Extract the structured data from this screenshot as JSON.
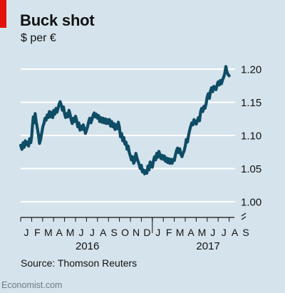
{
  "header": {
    "title": "Buck shot",
    "subtitle": "$ per €"
  },
  "footer": {
    "source": "Source: Thomson Reuters",
    "credit": "Economist.com"
  },
  "colors": {
    "background": "#d5e3ec",
    "line": "#0f4c65",
    "grid": "#ffffff",
    "accent_red": "#e3120b"
  },
  "chart_data": {
    "type": "line",
    "title": "Buck shot",
    "ylabel": "$ per €",
    "ylim": [
      1.0,
      1.21
    ],
    "y_ticks": [
      {
        "value": 1.2,
        "label": "1.20"
      },
      {
        "value": 1.15,
        "label": "1.15"
      },
      {
        "value": 1.1,
        "label": "1.10"
      },
      {
        "value": 1.05,
        "label": "1.05"
      },
      {
        "value": 1.0,
        "label": "1.00"
      }
    ],
    "axis_break": true,
    "grid": true,
    "x_month_labels": [
      "J",
      "F",
      "M",
      "A",
      "M",
      "J",
      "J",
      "A",
      "S",
      "O",
      "N",
      "D",
      "J",
      "F",
      "M",
      "A",
      "M",
      "J",
      "J",
      "A",
      "S"
    ],
    "x_year_labels": [
      {
        "label": "2016",
        "month_center": 5.5
      },
      {
        "label": "2017",
        "month_center": 16.5
      }
    ],
    "series": [
      {
        "values": [
          [
            0.0,
            1.085
          ],
          [
            0.12,
            1.079
          ],
          [
            0.22,
            1.089
          ],
          [
            0.32,
            1.082
          ],
          [
            0.42,
            1.092
          ],
          [
            0.52,
            1.086
          ],
          [
            0.62,
            1.09
          ],
          [
            0.72,
            1.084
          ],
          [
            0.82,
            1.095
          ],
          [
            0.92,
            1.089
          ],
          [
            1.0,
            1.098
          ],
          [
            1.08,
            1.115
          ],
          [
            1.15,
            1.128
          ],
          [
            1.22,
            1.119
          ],
          [
            1.32,
            1.133
          ],
          [
            1.42,
            1.12
          ],
          [
            1.52,
            1.111
          ],
          [
            1.62,
            1.101
          ],
          [
            1.72,
            1.088
          ],
          [
            1.82,
            1.094
          ],
          [
            1.92,
            1.104
          ],
          [
            2.02,
            1.113
          ],
          [
            2.12,
            1.118
          ],
          [
            2.22,
            1.126
          ],
          [
            2.32,
            1.123
          ],
          [
            2.42,
            1.131
          ],
          [
            2.52,
            1.127
          ],
          [
            2.62,
            1.136
          ],
          [
            2.72,
            1.128
          ],
          [
            2.82,
            1.135
          ],
          [
            2.92,
            1.127
          ],
          [
            3.02,
            1.138
          ],
          [
            3.12,
            1.132
          ],
          [
            3.22,
            1.141
          ],
          [
            3.32,
            1.135
          ],
          [
            3.42,
            1.142
          ],
          [
            3.52,
            1.148
          ],
          [
            3.6,
            1.151
          ],
          [
            3.7,
            1.146
          ],
          [
            3.8,
            1.138
          ],
          [
            3.9,
            1.143
          ],
          [
            4.0,
            1.133
          ],
          [
            4.1,
            1.127
          ],
          [
            4.2,
            1.133
          ],
          [
            4.3,
            1.128
          ],
          [
            4.4,
            1.138
          ],
          [
            4.5,
            1.132
          ],
          [
            4.6,
            1.124
          ],
          [
            4.7,
            1.118
          ],
          [
            4.8,
            1.126
          ],
          [
            4.9,
            1.121
          ],
          [
            5.0,
            1.129
          ],
          [
            5.1,
            1.123
          ],
          [
            5.2,
            1.113
          ],
          [
            5.3,
            1.119
          ],
          [
            5.4,
            1.108
          ],
          [
            5.5,
            1.114
          ],
          [
            5.6,
            1.109
          ],
          [
            5.7,
            1.116
          ],
          [
            5.8,
            1.111
          ],
          [
            5.9,
            1.103
          ],
          [
            6.0,
            1.108
          ],
          [
            6.1,
            1.113
          ],
          [
            6.2,
            1.121
          ],
          [
            6.3,
            1.126
          ],
          [
            6.4,
            1.119
          ],
          [
            6.5,
            1.124
          ],
          [
            6.6,
            1.13
          ],
          [
            6.7,
            1.134
          ],
          [
            6.8,
            1.128
          ],
          [
            6.9,
            1.132
          ],
          [
            7.0,
            1.126
          ],
          [
            7.1,
            1.13
          ],
          [
            7.2,
            1.121
          ],
          [
            7.3,
            1.127
          ],
          [
            7.4,
            1.12
          ],
          [
            7.5,
            1.126
          ],
          [
            7.6,
            1.119
          ],
          [
            7.7,
            1.125
          ],
          [
            7.8,
            1.118
          ],
          [
            7.9,
            1.124
          ],
          [
            8.0,
            1.118
          ],
          [
            8.1,
            1.124
          ],
          [
            8.2,
            1.114
          ],
          [
            8.3,
            1.121
          ],
          [
            8.4,
            1.113
          ],
          [
            8.5,
            1.118
          ],
          [
            8.6,
            1.109
          ],
          [
            8.7,
            1.116
          ],
          [
            8.8,
            1.11
          ],
          [
            8.9,
            1.12
          ],
          [
            9.0,
            1.112
          ],
          [
            9.1,
            1.098
          ],
          [
            9.2,
            1.103
          ],
          [
            9.3,
            1.092
          ],
          [
            9.4,
            1.097
          ],
          [
            9.5,
            1.087
          ],
          [
            9.6,
            1.09
          ],
          [
            9.7,
            1.079
          ],
          [
            9.8,
            1.084
          ],
          [
            9.9,
            1.074
          ],
          [
            10.0,
            1.069
          ],
          [
            10.1,
            1.063
          ],
          [
            10.2,
            1.068
          ],
          [
            10.3,
            1.058
          ],
          [
            10.4,
            1.062
          ],
          [
            10.5,
            1.073
          ],
          [
            10.6,
            1.066
          ],
          [
            10.7,
            1.061
          ],
          [
            10.8,
            1.056
          ],
          [
            10.9,
            1.05
          ],
          [
            11.0,
            1.055
          ],
          [
            11.1,
            1.045
          ],
          [
            11.2,
            1.048
          ],
          [
            11.3,
            1.042
          ],
          [
            11.4,
            1.047
          ],
          [
            11.5,
            1.043
          ],
          [
            11.6,
            1.054
          ],
          [
            11.7,
            1.048
          ],
          [
            11.8,
            1.06
          ],
          [
            11.9,
            1.053
          ],
          [
            12.0,
            1.052
          ],
          [
            12.1,
            1.061
          ],
          [
            12.2,
            1.068
          ],
          [
            12.3,
            1.063
          ],
          [
            12.4,
            1.073
          ],
          [
            12.5,
            1.067
          ],
          [
            12.6,
            1.076
          ],
          [
            12.7,
            1.071
          ],
          [
            12.8,
            1.065
          ],
          [
            12.9,
            1.07
          ],
          [
            13.0,
            1.064
          ],
          [
            13.1,
            1.069
          ],
          [
            13.2,
            1.061
          ],
          [
            13.3,
            1.066
          ],
          [
            13.4,
            1.059
          ],
          [
            13.5,
            1.065
          ],
          [
            13.6,
            1.058
          ],
          [
            13.7,
            1.064
          ],
          [
            13.8,
            1.058
          ],
          [
            13.9,
            1.064
          ],
          [
            14.0,
            1.062
          ],
          [
            14.1,
            1.07
          ],
          [
            14.2,
            1.077
          ],
          [
            14.3,
            1.081
          ],
          [
            14.4,
            1.074
          ],
          [
            14.5,
            1.08
          ],
          [
            14.6,
            1.072
          ],
          [
            14.7,
            1.068
          ],
          [
            14.8,
            1.073
          ],
          [
            14.9,
            1.077
          ],
          [
            15.0,
            1.084
          ],
          [
            15.1,
            1.094
          ],
          [
            15.2,
            1.09
          ],
          [
            15.3,
            1.1
          ],
          [
            15.4,
            1.108
          ],
          [
            15.5,
            1.114
          ],
          [
            15.6,
            1.119
          ],
          [
            15.7,
            1.116
          ],
          [
            15.8,
            1.124
          ],
          [
            15.9,
            1.121
          ],
          [
            16.0,
            1.117
          ],
          [
            16.1,
            1.122
          ],
          [
            16.2,
            1.127
          ],
          [
            16.3,
            1.122
          ],
          [
            16.4,
            1.136
          ],
          [
            16.5,
            1.141
          ],
          [
            16.6,
            1.136
          ],
          [
            16.7,
            1.144
          ],
          [
            16.8,
            1.141
          ],
          [
            16.9,
            1.148
          ],
          [
            17.0,
            1.158
          ],
          [
            17.1,
            1.163
          ],
          [
            17.2,
            1.156
          ],
          [
            17.3,
            1.167
          ],
          [
            17.4,
            1.172
          ],
          [
            17.5,
            1.166
          ],
          [
            17.6,
            1.174
          ],
          [
            17.7,
            1.171
          ],
          [
            17.8,
            1.169
          ],
          [
            17.9,
            1.176
          ],
          [
            18.0,
            1.181
          ],
          [
            18.1,
            1.176
          ],
          [
            18.2,
            1.183
          ],
          [
            18.3,
            1.178
          ],
          [
            18.4,
            1.184
          ],
          [
            18.5,
            1.188
          ],
          [
            18.6,
            1.193
          ],
          [
            18.7,
            1.204
          ],
          [
            18.8,
            1.196
          ],
          [
            18.9,
            1.192
          ],
          [
            19.0,
            1.19
          ]
        ]
      }
    ]
  }
}
